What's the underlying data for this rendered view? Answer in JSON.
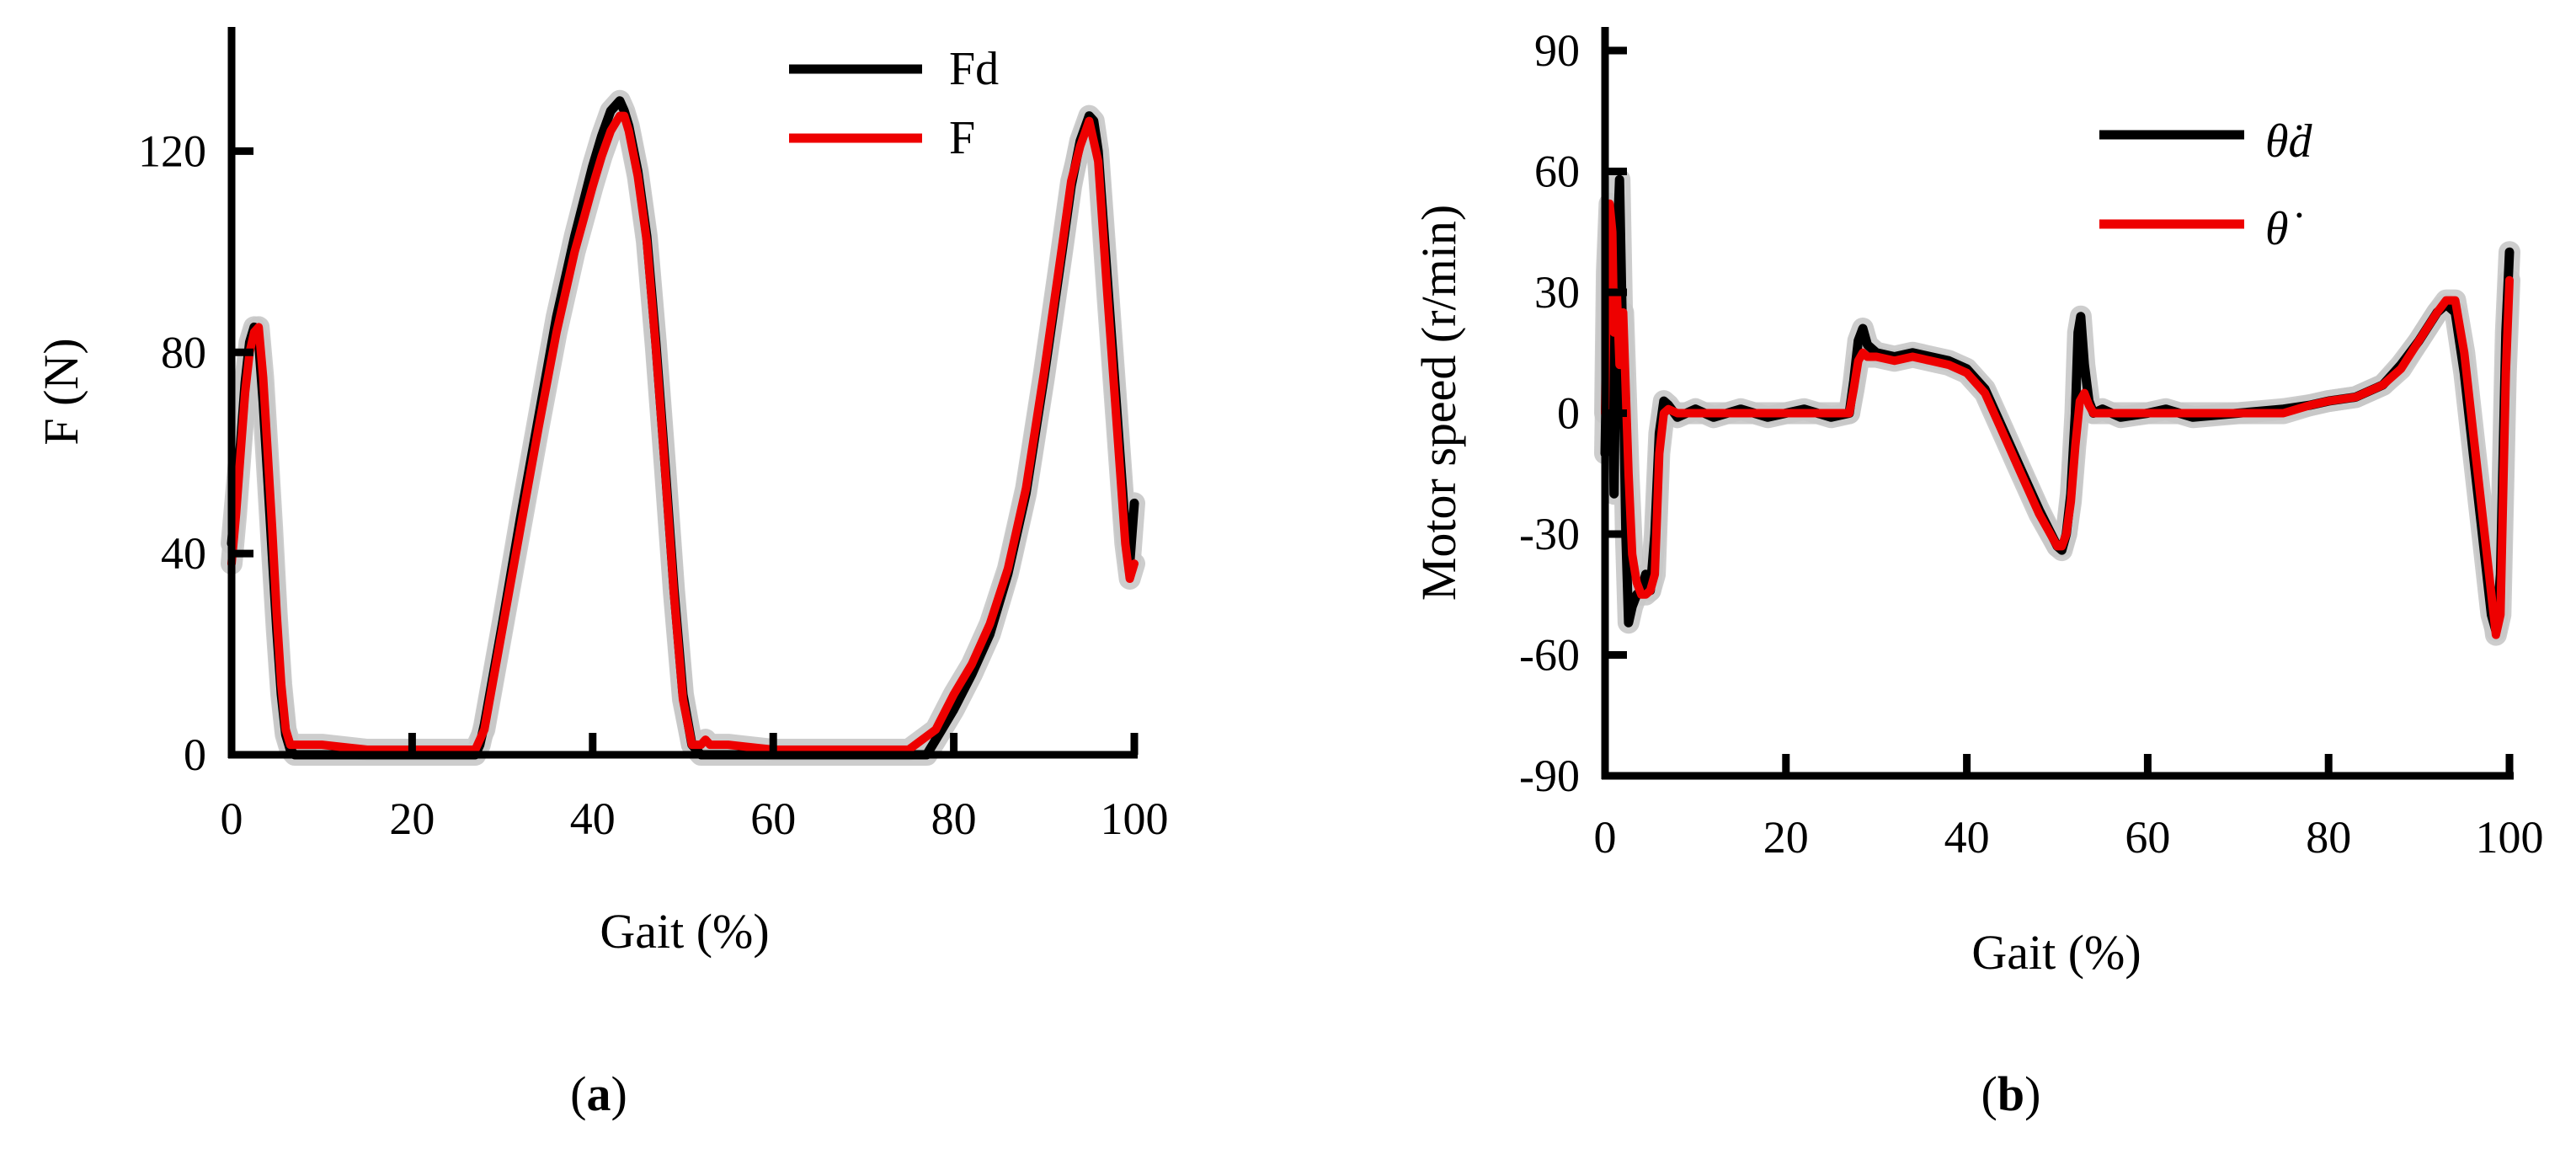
{
  "chart_data": [
    {
      "type": "line",
      "caption_letter": "a",
      "ylabel": "F (N)",
      "xlabel": "Gait (%)",
      "xlim": [
        0,
        100
      ],
      "ylim": [
        0,
        140
      ],
      "xticks": [
        0,
        20,
        40,
        60,
        80,
        100
      ],
      "yticks": [
        0,
        40,
        80,
        120
      ],
      "xtick_labels": [
        "0",
        "20",
        "40",
        "60",
        "80",
        "100"
      ],
      "ytick_labels": [
        "0",
        "40",
        "80",
        "120"
      ],
      "legend_position": "top-right",
      "band_color": "#c8c8c8",
      "band_width": 7,
      "series": [
        {
          "name": "Fd",
          "color": "#000000",
          "x": [
            0,
            0.5,
            1,
            1.5,
            2,
            2.5,
            3,
            3.5,
            4,
            4.5,
            5,
            5.5,
            6,
            6.5,
            7,
            8,
            10,
            15,
            20,
            25,
            27,
            27.5,
            28,
            30,
            32,
            34,
            36,
            38,
            40,
            41,
            42,
            42.5,
            43,
            43.5,
            44,
            45,
            46,
            47,
            48,
            49,
            50,
            51,
            52,
            53,
            55,
            60,
            65,
            70,
            75,
            77,
            78,
            80,
            82,
            84,
            86,
            88,
            90,
            92,
            93,
            94,
            95,
            95.5,
            96,
            97,
            98,
            99,
            99.5,
            100
          ],
          "y": [
            42,
            52,
            62,
            74,
            82,
            85,
            82,
            70,
            55,
            40,
            25,
            12,
            4,
            1,
            0,
            0,
            0,
            0,
            0,
            0,
            0,
            2,
            6,
            26,
            47,
            67,
            87,
            103,
            117,
            123,
            128,
            129,
            130,
            128,
            125,
            116,
            103,
            82,
            58,
            33,
            12,
            2,
            0,
            0,
            0,
            0,
            0,
            0,
            0,
            0,
            3,
            9,
            16,
            24,
            36,
            52,
            75,
            100,
            113,
            122,
            127,
            126,
            120,
            95,
            70,
            45,
            38,
            50
          ]
        },
        {
          "name": "F",
          "color": "#ee0000",
          "x": [
            0,
            0.5,
            1,
            1.5,
            2,
            2.5,
            3,
            3.5,
            4,
            4.5,
            5,
            5.5,
            6,
            6.5,
            7,
            8,
            10,
            15,
            20,
            25,
            27,
            28,
            30,
            32,
            34,
            36,
            38,
            40,
            41,
            42,
            43,
            43.5,
            44,
            45,
            46,
            47,
            48,
            49,
            50,
            51,
            52,
            52.5,
            53,
            55,
            60,
            65,
            70,
            75,
            78,
            80,
            82,
            84,
            86,
            88,
            90,
            92,
            93,
            94,
            95,
            96,
            97,
            98,
            99,
            99.5,
            100
          ],
          "y": [
            38,
            48,
            60,
            72,
            80,
            84,
            85,
            75,
            60,
            45,
            28,
            14,
            5,
            2,
            2,
            2,
            2,
            1,
            1,
            1,
            1,
            5,
            25,
            45,
            65,
            84,
            100,
            113,
            119,
            124,
            127,
            127,
            124,
            115,
            102,
            81,
            57,
            32,
            11,
            2,
            2,
            3,
            2,
            2,
            1,
            1,
            1,
            1,
            5,
            12,
            18,
            26,
            37,
            53,
            76,
            101,
            114,
            121,
            126,
            118,
            92,
            67,
            42,
            35,
            38
          ]
        }
      ]
    },
    {
      "type": "line",
      "caption_letter": "b",
      "ylabel": "Motor speed (r/min)",
      "xlabel": "Gait (%)",
      "xlim": [
        0,
        100
      ],
      "ylim": [
        -90,
        90
      ],
      "xticks": [
        0,
        20,
        40,
        60,
        80,
        100
      ],
      "yticks": [
        -90,
        -60,
        -30,
        0,
        30,
        60,
        90
      ],
      "xtick_labels": [
        "0",
        "20",
        "40",
        "60",
        "80",
        "100"
      ],
      "ytick_labels": [
        "-90",
        "-60",
        "-30",
        "0",
        "30",
        "60",
        "90"
      ],
      "legend_position": "top-right",
      "band_color": "#c8c8c8",
      "band_width": 7,
      "series": [
        {
          "name": "θ̇d",
          "color": "#000000",
          "x": [
            0,
            0.3,
            0.6,
            1,
            1.3,
            1.6,
            2,
            2.3,
            2.6,
            3,
            3.5,
            4,
            4.5,
            5,
            5.5,
            6,
            6.5,
            7,
            8,
            10,
            12,
            15,
            18,
            20,
            22,
            25,
            27,
            27.5,
            28,
            28.5,
            29,
            30,
            32,
            34,
            36,
            38,
            40,
            42,
            44,
            46,
            48,
            50,
            50.5,
            51,
            51.5,
            52,
            52.3,
            52.6,
            53,
            53.5,
            54,
            55,
            57,
            60,
            62,
            65,
            70,
            75,
            78,
            80,
            83,
            86,
            88,
            90,
            92,
            93,
            94,
            95,
            96,
            97,
            98,
            98.5,
            99,
            99.3,
            99.6,
            100
          ],
          "y": [
            -10,
            30,
            50,
            -20,
            40,
            58,
            10,
            -30,
            -52,
            -48,
            -45,
            -44,
            -40,
            -44,
            -30,
            -5,
            3,
            2,
            -1,
            1,
            -1,
            1,
            -1,
            0,
            1,
            -1,
            0,
            8,
            18,
            21,
            17,
            15,
            14,
            15,
            14,
            13,
            11,
            6,
            -4,
            -14,
            -24,
            -33,
            -34,
            -30,
            -20,
            0,
            20,
            24,
            12,
            3,
            0,
            1,
            -1,
            0,
            1,
            -1,
            0,
            1,
            2,
            3,
            4,
            7,
            12,
            18,
            25,
            27,
            25,
            10,
            -10,
            -30,
            -50,
            -54,
            -40,
            -10,
            20,
            40
          ]
        },
        {
          "name": "θ̇",
          "color": "#ee0000",
          "x": [
            0,
            0.2,
            0.5,
            0.8,
            1,
            1.3,
            1.6,
            2,
            2.3,
            2.6,
            3,
            3.5,
            4,
            4.5,
            5,
            5.5,
            6,
            6.5,
            7,
            8,
            10,
            12,
            15,
            18,
            20,
            22,
            25,
            27,
            27.5,
            28,
            28.5,
            29,
            30,
            32,
            34,
            36,
            38,
            40,
            42,
            44,
            46,
            48,
            50,
            50.5,
            51,
            51.5,
            52,
            52.5,
            53,
            53.5,
            54,
            55,
            57,
            60,
            62,
            65,
            70,
            75,
            78,
            80,
            83,
            86,
            88,
            90,
            92,
            93,
            94,
            95,
            96,
            97,
            98,
            98.5,
            99,
            99.3,
            99.6,
            100
          ],
          "y": [
            0,
            35,
            52,
            45,
            20,
            30,
            12,
            25,
            5,
            -15,
            -35,
            -42,
            -45,
            -45,
            -44,
            -40,
            -10,
            0,
            1,
            0,
            0,
            0,
            0,
            0,
            0,
            0,
            0,
            0,
            6,
            13,
            15,
            14,
            14,
            13,
            14,
            13,
            12,
            10,
            5,
            -5,
            -15,
            -25,
            -33,
            -33,
            -30,
            -22,
            -8,
            3,
            5,
            2,
            0,
            0,
            0,
            0,
            0,
            0,
            0,
            0,
            2,
            3,
            4,
            7,
            11,
            18,
            25,
            28,
            28,
            15,
            -5,
            -25,
            -45,
            -55,
            -50,
            -20,
            10,
            33
          ]
        }
      ]
    }
  ]
}
